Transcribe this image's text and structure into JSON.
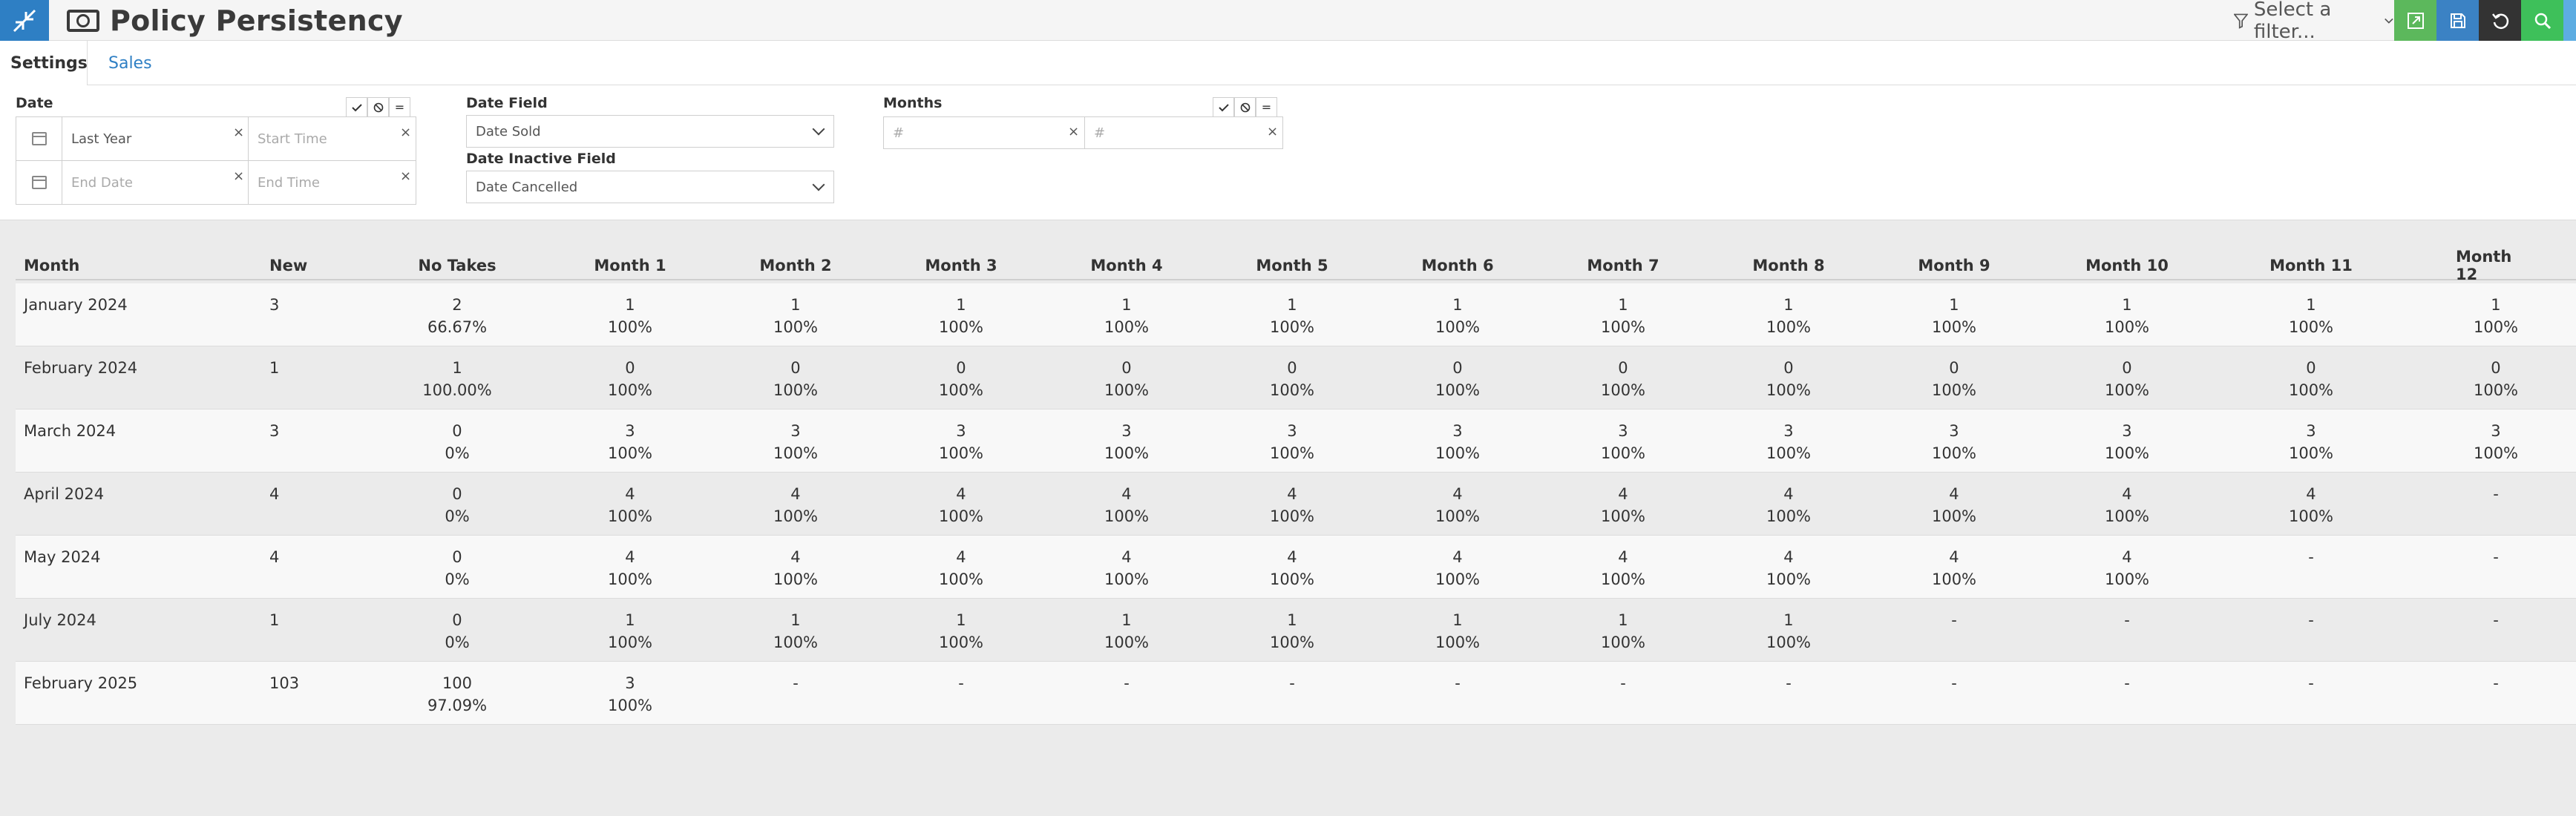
{
  "app": {
    "title": "Policy Persistency",
    "filter_placeholder": "Select a filter..."
  },
  "icons": {
    "logo": "collapse-arrows-icon",
    "title": "money-icon",
    "filter": "filter-icon",
    "export": "export-icon",
    "save": "save-icon",
    "reset": "undo-icon",
    "search": "search-icon"
  },
  "colors": {
    "brand_blue": "#2e7fc4",
    "green": "#5cb85c",
    "dark": "#333333"
  },
  "tabs": [
    {
      "label": "Settings",
      "active": true
    },
    {
      "label": "Sales",
      "active": false
    }
  ],
  "settings": {
    "date": {
      "label": "Date",
      "range_value": "Last Year",
      "start_time_placeholder": "Start Time",
      "end_date_placeholder": "End Date",
      "end_time_placeholder": "End Time",
      "clear_glyph": "×",
      "eq_glyph": "="
    },
    "date_field": {
      "label": "Date Field",
      "value": "Date Sold"
    },
    "date_inactive_field": {
      "label": "Date Inactive Field",
      "value": "Date Cancelled"
    },
    "months": {
      "label": "Months",
      "from_placeholder": "#",
      "to_placeholder": "#",
      "clear_glyph": "×",
      "eq_glyph": "="
    }
  },
  "table": {
    "columns": [
      "Month",
      "New",
      "No Takes",
      "Month 1",
      "Month 2",
      "Month 3",
      "Month 4",
      "Month 5",
      "Month 6",
      "Month 7",
      "Month 8",
      "Month 9",
      "Month 10",
      "Month 11",
      "Month 12"
    ],
    "rows": [
      {
        "month": "January 2024",
        "new": "3",
        "no_takes": {
          "v": "2",
          "p": "66.67%"
        },
        "months": [
          {
            "v": "1",
            "p": "100%"
          },
          {
            "v": "1",
            "p": "100%"
          },
          {
            "v": "1",
            "p": "100%"
          },
          {
            "v": "1",
            "p": "100%"
          },
          {
            "v": "1",
            "p": "100%"
          },
          {
            "v": "1",
            "p": "100%"
          },
          {
            "v": "1",
            "p": "100%"
          },
          {
            "v": "1",
            "p": "100%"
          },
          {
            "v": "1",
            "p": "100%"
          },
          {
            "v": "1",
            "p": "100%"
          },
          {
            "v": "1",
            "p": "100%"
          },
          {
            "v": "1",
            "p": "100%"
          }
        ]
      },
      {
        "month": "February 2024",
        "new": "1",
        "no_takes": {
          "v": "1",
          "p": "100.00%"
        },
        "months": [
          {
            "v": "0",
            "p": "100%"
          },
          {
            "v": "0",
            "p": "100%"
          },
          {
            "v": "0",
            "p": "100%"
          },
          {
            "v": "0",
            "p": "100%"
          },
          {
            "v": "0",
            "p": "100%"
          },
          {
            "v": "0",
            "p": "100%"
          },
          {
            "v": "0",
            "p": "100%"
          },
          {
            "v": "0",
            "p": "100%"
          },
          {
            "v": "0",
            "p": "100%"
          },
          {
            "v": "0",
            "p": "100%"
          },
          {
            "v": "0",
            "p": "100%"
          },
          {
            "v": "0",
            "p": "100%"
          }
        ]
      },
      {
        "month": "March 2024",
        "new": "3",
        "no_takes": {
          "v": "0",
          "p": "0%"
        },
        "months": [
          {
            "v": "3",
            "p": "100%"
          },
          {
            "v": "3",
            "p": "100%"
          },
          {
            "v": "3",
            "p": "100%"
          },
          {
            "v": "3",
            "p": "100%"
          },
          {
            "v": "3",
            "p": "100%"
          },
          {
            "v": "3",
            "p": "100%"
          },
          {
            "v": "3",
            "p": "100%"
          },
          {
            "v": "3",
            "p": "100%"
          },
          {
            "v": "3",
            "p": "100%"
          },
          {
            "v": "3",
            "p": "100%"
          },
          {
            "v": "3",
            "p": "100%"
          },
          {
            "v": "3",
            "p": "100%"
          }
        ]
      },
      {
        "month": "April 2024",
        "new": "4",
        "no_takes": {
          "v": "0",
          "p": "0%"
        },
        "months": [
          {
            "v": "4",
            "p": "100%"
          },
          {
            "v": "4",
            "p": "100%"
          },
          {
            "v": "4",
            "p": "100%"
          },
          {
            "v": "4",
            "p": "100%"
          },
          {
            "v": "4",
            "p": "100%"
          },
          {
            "v": "4",
            "p": "100%"
          },
          {
            "v": "4",
            "p": "100%"
          },
          {
            "v": "4",
            "p": "100%"
          },
          {
            "v": "4",
            "p": "100%"
          },
          {
            "v": "4",
            "p": "100%"
          },
          {
            "v": "4",
            "p": "100%"
          },
          {
            "v": "-",
            "p": ""
          }
        ]
      },
      {
        "month": "May 2024",
        "new": "4",
        "no_takes": {
          "v": "0",
          "p": "0%"
        },
        "months": [
          {
            "v": "4",
            "p": "100%"
          },
          {
            "v": "4",
            "p": "100%"
          },
          {
            "v": "4",
            "p": "100%"
          },
          {
            "v": "4",
            "p": "100%"
          },
          {
            "v": "4",
            "p": "100%"
          },
          {
            "v": "4",
            "p": "100%"
          },
          {
            "v": "4",
            "p": "100%"
          },
          {
            "v": "4",
            "p": "100%"
          },
          {
            "v": "4",
            "p": "100%"
          },
          {
            "v": "4",
            "p": "100%"
          },
          {
            "v": "-",
            "p": ""
          },
          {
            "v": "-",
            "p": ""
          }
        ]
      },
      {
        "month": "July 2024",
        "new": "1",
        "no_takes": {
          "v": "0",
          "p": "0%"
        },
        "months": [
          {
            "v": "1",
            "p": "100%"
          },
          {
            "v": "1",
            "p": "100%"
          },
          {
            "v": "1",
            "p": "100%"
          },
          {
            "v": "1",
            "p": "100%"
          },
          {
            "v": "1",
            "p": "100%"
          },
          {
            "v": "1",
            "p": "100%"
          },
          {
            "v": "1",
            "p": "100%"
          },
          {
            "v": "1",
            "p": "100%"
          },
          {
            "v": "-",
            "p": ""
          },
          {
            "v": "-",
            "p": ""
          },
          {
            "v": "-",
            "p": ""
          },
          {
            "v": "-",
            "p": ""
          }
        ]
      },
      {
        "month": "February 2025",
        "new": "103",
        "no_takes": {
          "v": "100",
          "p": "97.09%"
        },
        "months": [
          {
            "v": "3",
            "p": "100%"
          },
          {
            "v": "-",
            "p": ""
          },
          {
            "v": "-",
            "p": ""
          },
          {
            "v": "-",
            "p": ""
          },
          {
            "v": "-",
            "p": ""
          },
          {
            "v": "-",
            "p": ""
          },
          {
            "v": "-",
            "p": ""
          },
          {
            "v": "-",
            "p": ""
          },
          {
            "v": "-",
            "p": ""
          },
          {
            "v": "-",
            "p": ""
          },
          {
            "v": "-",
            "p": ""
          },
          {
            "v": "-",
            "p": ""
          }
        ]
      }
    ]
  }
}
